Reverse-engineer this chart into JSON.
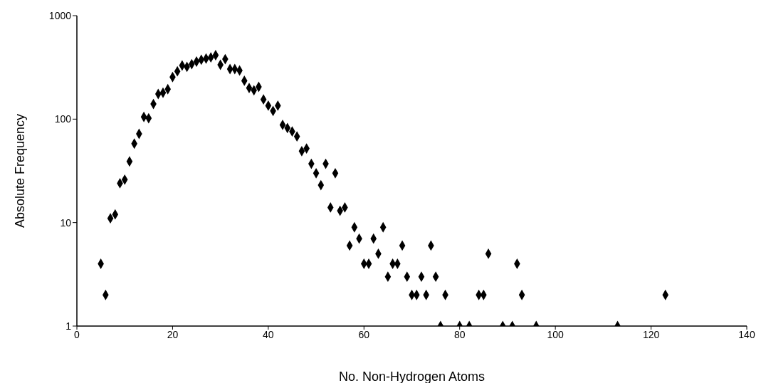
{
  "chart_data": {
    "type": "scatter",
    "xlabel": "No. Non-Hydrogen Atoms",
    "ylabel": "Absolute Frequency",
    "x": [
      5,
      6,
      7,
      8,
      9,
      10,
      11,
      12,
      13,
      14,
      15,
      16,
      17,
      18,
      19,
      20,
      21,
      22,
      23,
      24,
      25,
      26,
      27,
      28,
      29,
      30,
      31,
      32,
      33,
      34,
      35,
      36,
      37,
      38,
      39,
      40,
      41,
      42,
      43,
      44,
      45,
      46,
      47,
      48,
      49,
      50,
      51,
      52,
      53,
      54,
      55,
      56,
      57,
      58,
      59,
      60,
      61,
      62,
      63,
      64,
      65,
      66,
      67,
      68,
      69,
      70,
      71,
      72,
      73,
      74,
      75,
      76,
      77,
      80,
      82,
      84,
      85,
      86,
      89,
      91,
      92,
      93,
      96,
      113,
      123
    ],
    "series": [
      {
        "color": "#000000",
        "values": [
          4,
          2,
          11,
          12,
          24,
          26,
          39,
          58,
          72,
          105,
          102,
          140,
          175,
          180,
          195,
          255,
          290,
          330,
          320,
          340,
          360,
          375,
          385,
          395,
          415,
          335,
          380,
          305,
          305,
          295,
          235,
          200,
          190,
          205,
          155,
          135,
          120,
          135,
          88,
          82,
          76,
          68,
          49,
          52,
          37,
          30,
          23,
          37,
          14,
          30,
          13,
          14,
          6,
          9,
          7,
          4,
          4,
          7,
          5,
          9,
          3,
          4,
          4,
          6,
          3,
          2,
          2,
          3,
          2,
          6,
          3,
          1,
          2,
          1,
          1,
          2,
          2,
          5,
          1,
          1,
          4,
          2,
          1,
          1,
          2
        ]
      }
    ],
    "xlim": [
      0,
      140
    ],
    "xticks": [
      0,
      20,
      40,
      60,
      80,
      100,
      120,
      140
    ],
    "ylim": [
      1,
      1000
    ],
    "yticks": [
      1,
      10,
      100,
      1000
    ],
    "log": "y",
    "marker": "diamond"
  }
}
